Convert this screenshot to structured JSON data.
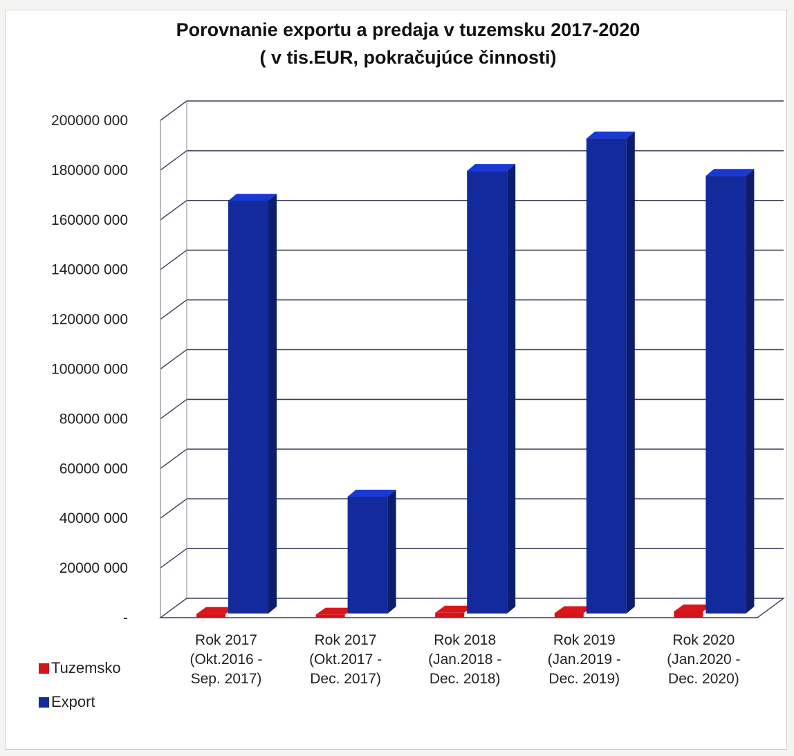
{
  "chart_data": {
    "type": "bar",
    "title": "Porovnanie exportu a predaja v tuzemsku 2017-2020",
    "subtitle": "( v tis.EUR, pokračujúce činnosti)",
    "categories": [
      [
        "Rok 2017",
        "(Okt.2016  -",
        "Sep. 2017)"
      ],
      [
        "Rok 2017",
        "(Okt.2017  -",
        "Dec. 2017)"
      ],
      [
        "Rok 2018",
        "(Jan.2018  -",
        "Dec. 2018)"
      ],
      [
        "Rok 2019",
        "(Jan.2019  -",
        "Dec. 2019)"
      ],
      [
        "Rok 2020",
        "(Jan.2020  -",
        "Dec. 2020)"
      ]
    ],
    "series": [
      {
        "name": "Tuzemsko",
        "color": "#d0151b",
        "values": [
          1500,
          1200,
          2000,
          1800,
          2500
        ]
      },
      {
        "name": "Export",
        "color": "#122a9c",
        "values": [
          166000,
          47000,
          178000,
          191000,
          176000
        ]
      }
    ],
    "y_ticks": [
      "-",
      "20000 000",
      "40000 000",
      "60000 000",
      "80000 000",
      "100000 000",
      "120000 000",
      "140000 000",
      "160000 000",
      "180000 000",
      "200000 000"
    ],
    "ylim": [
      0,
      200000
    ],
    "grid": true,
    "legend_position": "bottom-left",
    "style": "3d-bar"
  }
}
